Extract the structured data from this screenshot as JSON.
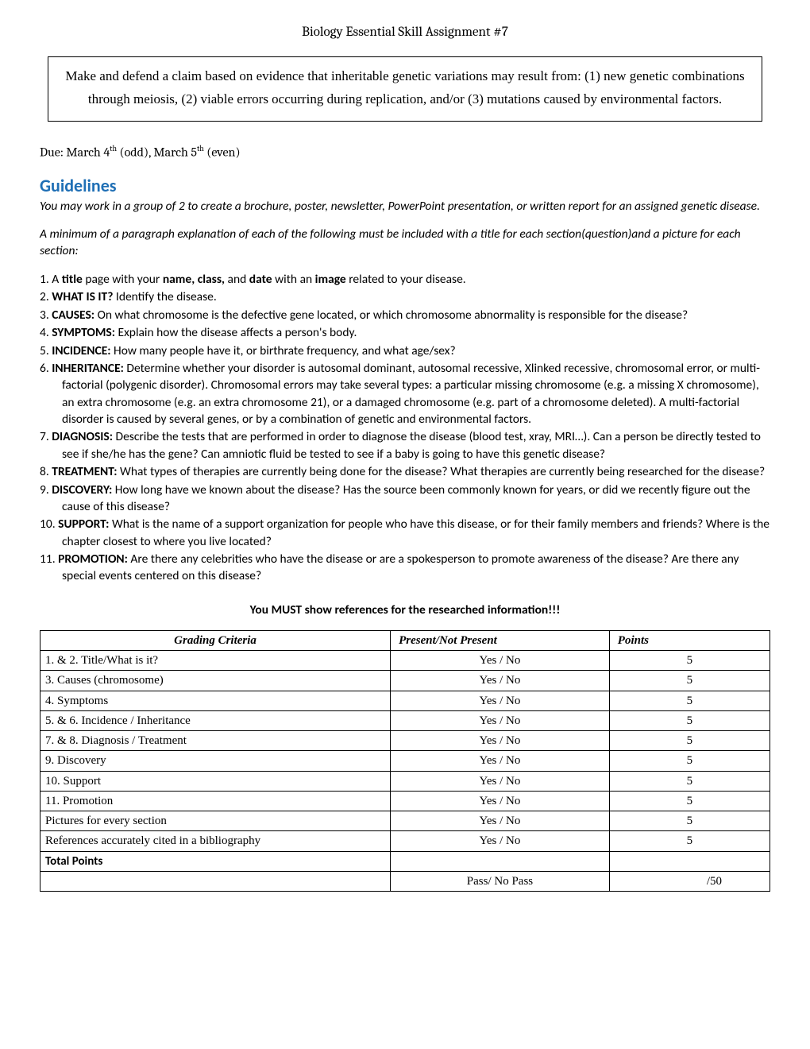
{
  "title": "Biology Essential Skill Assignment #7",
  "claim": "Make and defend a claim based on evidence that inheritable genetic variations may result from:  (1) new genetic combinations through meiosis, (2) viable errors occurring during replication, and/or (3) mutations caused by environmental factors.",
  "due": {
    "prefix": "Due: March 4",
    "sup1": "th",
    "mid": " (odd), March 5",
    "sup2": "th",
    "suffix": " (even)"
  },
  "guidelines_heading": "Guidelines",
  "intro1": "You may work in a group of 2 to create a brochure, poster, newsletter, PowerPoint presentation, or written report for an assigned genetic disease.",
  "intro2": "A minimum of a paragraph explanation of each of the following must be included with a title for each section(question)and a picture for each section:",
  "items": [
    {
      "pre": "A ",
      "b1": "title",
      "mid1": " page with your ",
      "b2": "name, class,",
      "mid2": " and ",
      "b3": "date",
      "mid3": " with an ",
      "b4": "image",
      "post": " related to your disease."
    },
    {
      "b1": "WHAT IS IT?",
      "post": " Identify the disease."
    },
    {
      "b1": "CAUSES:",
      "post": " On what chromosome is the defective gene located, or which chromosome abnormality is responsible for the disease?"
    },
    {
      "b1": "SYMPTOMS:",
      "post": " Explain how the disease affects a person's body."
    },
    {
      "b1": "INCIDENCE:",
      "post": " How many people have it, or birthrate frequency, and what age/sex?"
    },
    {
      "b1": "INHERITANCE:",
      "post": " Determine whether your disorder is autosomal dominant, autosomal recessive, Xlinked recessive, chromosomal error, or multi-factorial (polygenic disorder). Chromosomal errors may take several types: a particular missing chromosome (e.g. a missing X chromosome), an extra chromosome (e.g. an extra chromosome 21), or a damaged chromosome (e.g. part of a chromosome deleted). A multi-factorial disorder is caused by several genes, or by a combination of genetic and environmental factors."
    },
    {
      "b1": "DIAGNOSIS:",
      "post": " Describe the tests that are performed in order to diagnose the disease (blood test, xray, MRI…). Can a person be directly tested to see if she/he has the gene? Can amniotic fluid be tested to see if a baby is going to have this genetic disease?"
    },
    {
      "b1": "TREATMENT:",
      "post": " What types of therapies are currently being done for the disease? What therapies are currently being researched for the disease?"
    },
    {
      "b1": "DISCOVERY:",
      "post": " How long have we known about the disease? Has the source been commonly known for years, or did we recently figure out the cause of this disease?"
    },
    {
      "b1": "SUPPORT:",
      "post": " What is the name of a support organization for people who have this disease, or for their family members and friends? Where is the chapter closest to where you live located?"
    },
    {
      "b1": "PROMOTION:",
      "post": " Are there any celebrities who have the disease or are a spokesperson to promote awareness of the disease? Are there any special events centered on this disease?"
    }
  ],
  "references_note": "You MUST show references for the researched information!!!",
  "rubric": {
    "headers": [
      "Grading Criteria",
      "Present/Not Present",
      "Points"
    ],
    "rows": [
      {
        "c": "1. & 2. Title/What is it?",
        "p": "Yes / No",
        "pts": "5"
      },
      {
        "c": "3. Causes (chromosome)",
        "p": "Yes / No",
        "pts": "5"
      },
      {
        "c": "4. Symptoms",
        "p": "Yes / No",
        "pts": "5"
      },
      {
        "c": "5. & 6. Incidence / Inheritance",
        "p": "Yes / No",
        "pts": "5"
      },
      {
        "c": "7. & 8. Diagnosis / Treatment",
        "p": "Yes / No",
        "pts": "5"
      },
      {
        "c": "9. Discovery",
        "p": "Yes / No",
        "pts": "5"
      },
      {
        "c": "10. Support",
        "p": "Yes / No",
        "pts": "5"
      },
      {
        "c": "11. Promotion",
        "p": "Yes / No",
        "pts": "5"
      },
      {
        "c": "Pictures for every section",
        "p": "Yes / No",
        "pts": "5"
      },
      {
        "c": "References accurately cited in a bibliography",
        "p": "Yes / No",
        "pts": "5"
      }
    ],
    "total_label": "Total Points",
    "pass_label": "Pass/ No Pass",
    "pass_pts": "/50"
  }
}
